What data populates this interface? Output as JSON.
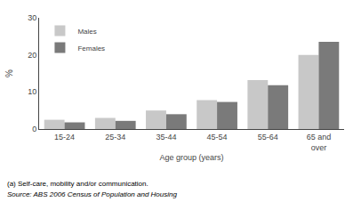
{
  "chart_data": {
    "type": "bar",
    "categories": [
      "15-24",
      "25-34",
      "35-44",
      "45-54",
      "55-64",
      "65 and\nover"
    ],
    "series": [
      {
        "name": "Males",
        "color": "#c8c8c8",
        "values": [
          2.5,
          3.0,
          5.0,
          7.8,
          13.2,
          20.0
        ]
      },
      {
        "name": "Females",
        "color": "#7a7a7a",
        "values": [
          1.8,
          2.2,
          4.0,
          7.3,
          11.8,
          23.5
        ]
      }
    ],
    "ylabel": "%",
    "xlabel": "Age group (years)",
    "ylim": [
      0,
      30
    ],
    "yticks": [
      0,
      10,
      20,
      30
    ],
    "legend": "upper left",
    "grid": false,
    "annotations": [
      "(a) Self-care, mobility and/or communication.",
      "Source: ABS 2006 Census of Population and Housing"
    ]
  }
}
